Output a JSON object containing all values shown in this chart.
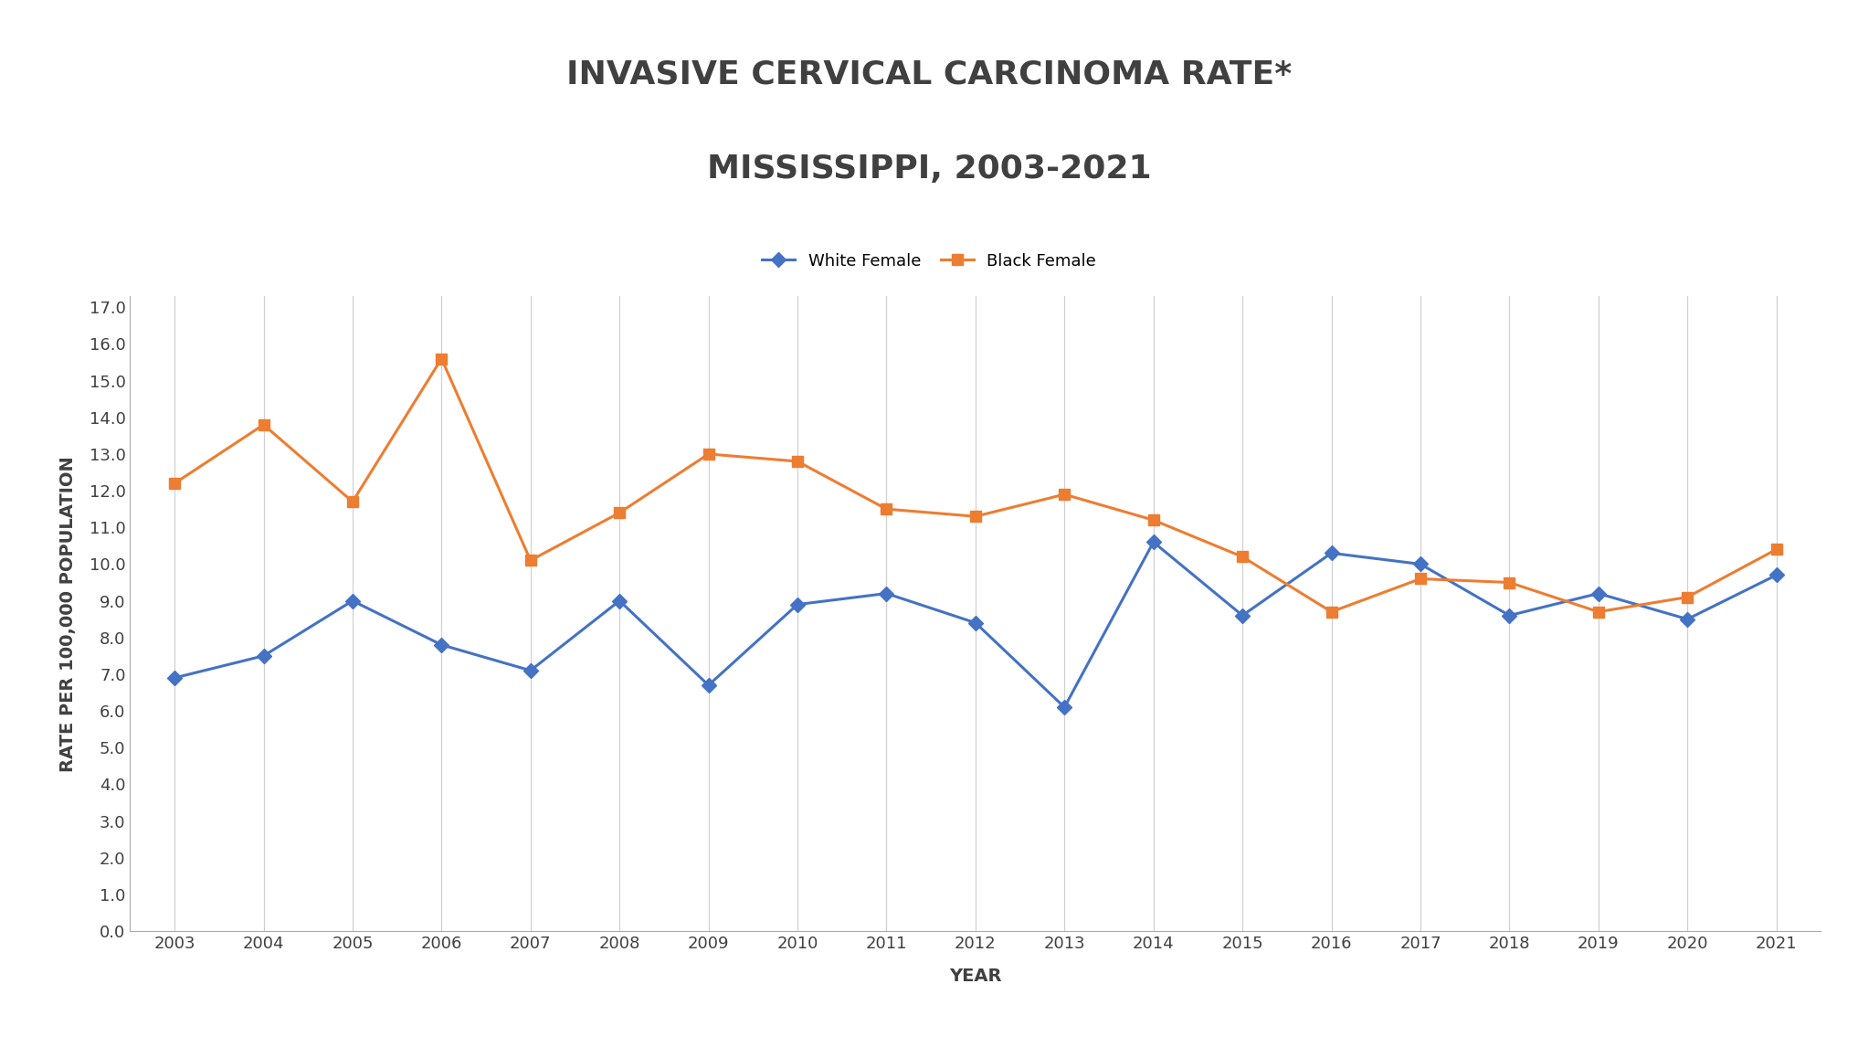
{
  "title_line1": "INVASIVE CERVICAL CARCINOMA RATE*",
  "title_line2": "MISSISSIPPI, 2003-2021",
  "xlabel": "YEAR",
  "ylabel": "RATE PER 100,000 POPULATION",
  "years": [
    2003,
    2004,
    2005,
    2006,
    2007,
    2008,
    2009,
    2010,
    2011,
    2012,
    2013,
    2014,
    2015,
    2016,
    2017,
    2018,
    2019,
    2020,
    2021
  ],
  "white_female": [
    6.9,
    7.5,
    9.0,
    7.8,
    7.1,
    9.0,
    6.7,
    8.9,
    9.2,
    8.4,
    6.1,
    10.6,
    8.6,
    10.3,
    10.0,
    8.6,
    9.2,
    8.5,
    9.7
  ],
  "black_female": [
    12.2,
    13.8,
    11.7,
    15.6,
    10.1,
    11.4,
    13.0,
    12.8,
    11.5,
    11.3,
    11.9,
    11.2,
    10.2,
    8.7,
    9.6,
    9.5,
    8.7,
    9.1,
    10.4
  ],
  "white_color": "#4472C4",
  "black_color": "#ED7D31",
  "white_label": "White Female",
  "black_label": "Black Female",
  "ylim_min": 0.0,
  "ylim_max": 17.0,
  "ytick_step": 1.0,
  "background_color": "#FFFFFF",
  "grid_color": "#D0D0D0",
  "title_fontsize": 26,
  "axis_label_fontsize": 14,
  "tick_fontsize": 13,
  "legend_fontsize": 13,
  "line_width": 2.2,
  "marker_size": 8,
  "text_color": "#404040"
}
